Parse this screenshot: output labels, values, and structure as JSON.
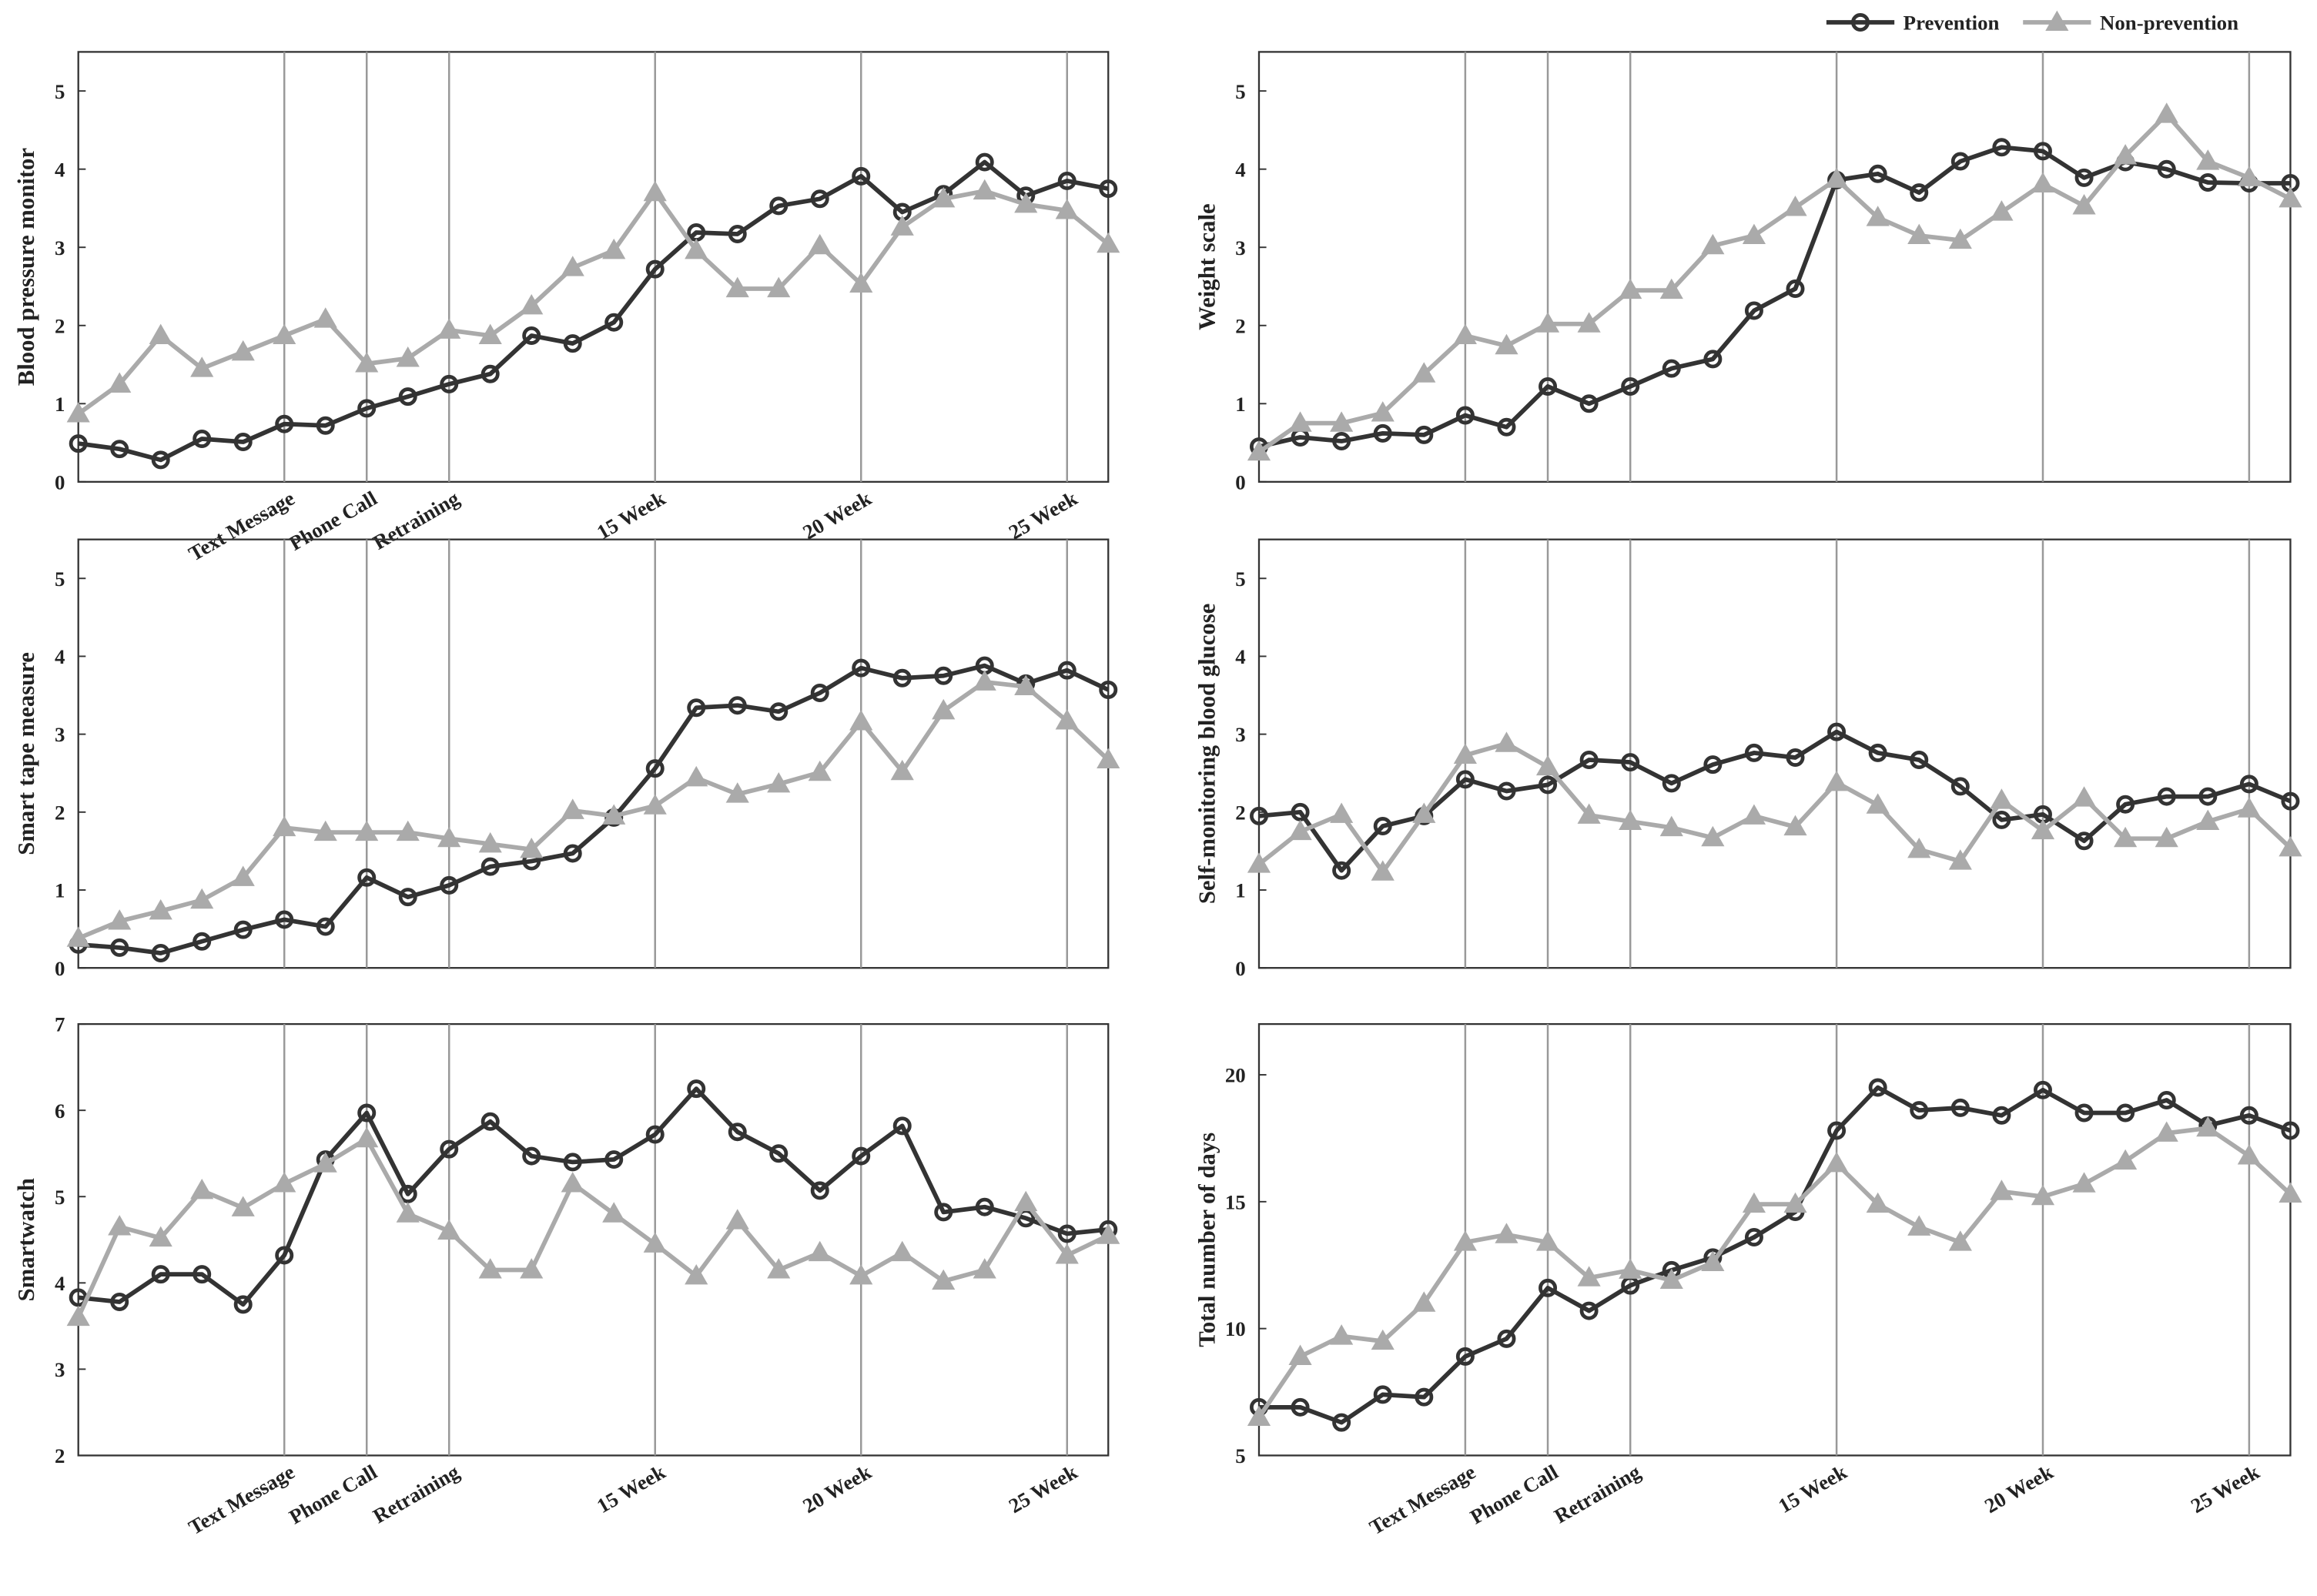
{
  "chart_data": [
    {
      "type": "line",
      "ylabel": "Blood pressure monitor",
      "x": [
        1,
        2,
        3,
        4,
        5,
        6,
        7,
        8,
        9,
        10,
        11,
        12,
        13,
        14,
        15,
        16,
        17,
        18,
        19,
        20,
        21,
        22,
        23,
        24,
        25,
        26
      ],
      "xlim": [
        1,
        26
      ],
      "ylim": [
        0,
        5.5
      ],
      "yticks": [
        0,
        1,
        2,
        3,
        4,
        5
      ],
      "xticks": [
        {
          "value": 6,
          "label": "Text Message"
        },
        {
          "value": 8,
          "label": "Phone Call"
        },
        {
          "value": 10,
          "label": "Retraining"
        },
        {
          "value": 15,
          "label": "15 Week"
        },
        {
          "value": 20,
          "label": "20 Week"
        },
        {
          "value": 25,
          "label": "25 Week"
        }
      ],
      "grid": true,
      "series": [
        {
          "name": "Prevention",
          "color": "#333333",
          "marker": "circle",
          "values": [
            0.49,
            0.42,
            0.28,
            0.55,
            0.51,
            0.74,
            0.72,
            0.94,
            1.09,
            1.25,
            1.38,
            1.87,
            1.77,
            2.04,
            2.72,
            3.19,
            3.17,
            3.53,
            3.62,
            3.91,
            3.45,
            3.68,
            4.09,
            3.66,
            3.85,
            3.75
          ]
        },
        {
          "name": "Non-prevention",
          "color": "#aaaaaa",
          "marker": "triangle",
          "values": [
            0.87,
            1.25,
            1.87,
            1.45,
            1.66,
            1.87,
            2.08,
            1.51,
            1.58,
            1.94,
            1.87,
            2.25,
            2.74,
            2.96,
            3.7,
            2.96,
            2.47,
            2.47,
            3.02,
            2.53,
            3.26,
            3.62,
            3.72,
            3.55,
            3.47,
            3.04
          ]
        }
      ]
    },
    {
      "type": "line",
      "ylabel": "Weight scale",
      "x": [
        1,
        2,
        3,
        4,
        5,
        6,
        7,
        8,
        9,
        10,
        11,
        12,
        13,
        14,
        15,
        16,
        17,
        18,
        19,
        20,
        21,
        22,
        23,
        24,
        25,
        26
      ],
      "xlim": [
        1,
        26
      ],
      "ylim": [
        0,
        5.5
      ],
      "yticks": [
        0,
        1,
        2,
        3,
        4,
        5
      ],
      "xticks": [
        {
          "value": 6
        },
        {
          "value": 8
        },
        {
          "value": 10
        },
        {
          "value": 15
        },
        {
          "value": 20
        },
        {
          "value": 25
        }
      ],
      "grid": true,
      "series": [
        {
          "color": "#333333",
          "marker": "circle",
          "values": [
            0.45,
            0.57,
            0.52,
            0.62,
            0.6,
            0.85,
            0.7,
            1.22,
            1.0,
            1.22,
            1.45,
            1.57,
            2.19,
            2.47,
            3.86,
            3.94,
            3.7,
            4.1,
            4.28,
            4.23,
            3.89,
            4.09,
            4.0,
            3.83,
            3.82,
            3.82
          ]
        },
        {
          "color": "#aaaaaa",
          "marker": "triangle",
          "values": [
            0.38,
            0.75,
            0.75,
            0.88,
            1.38,
            1.87,
            1.74,
            2.02,
            2.02,
            2.45,
            2.45,
            3.02,
            3.15,
            3.51,
            3.87,
            3.38,
            3.15,
            3.09,
            3.45,
            3.81,
            3.53,
            4.17,
            4.7,
            4.1,
            3.89,
            3.62
          ]
        }
      ]
    },
    {
      "type": "line",
      "ylabel": "Smart tape measure",
      "x": [
        1,
        2,
        3,
        4,
        5,
        6,
        7,
        8,
        9,
        10,
        11,
        12,
        13,
        14,
        15,
        16,
        17,
        18,
        19,
        20,
        21,
        22,
        23,
        24,
        25,
        26
      ],
      "xlim": [
        1,
        26
      ],
      "ylim": [
        0,
        5.5
      ],
      "yticks": [
        0,
        1,
        2,
        3,
        4,
        5
      ],
      "xticks": [
        {
          "value": 6
        },
        {
          "value": 8
        },
        {
          "value": 10
        },
        {
          "value": 15
        },
        {
          "value": 20
        },
        {
          "value": 25
        }
      ],
      "grid": true,
      "series": [
        {
          "color": "#333333",
          "marker": "circle",
          "values": [
            0.3,
            0.26,
            0.19,
            0.34,
            0.49,
            0.62,
            0.53,
            1.16,
            0.91,
            1.06,
            1.3,
            1.37,
            1.47,
            1.93,
            2.56,
            3.34,
            3.37,
            3.29,
            3.53,
            3.85,
            3.72,
            3.75,
            3.88,
            3.65,
            3.82,
            3.57
          ]
        },
        {
          "color": "#aaaaaa",
          "marker": "triangle",
          "values": [
            0.38,
            0.6,
            0.73,
            0.87,
            1.16,
            1.8,
            1.74,
            1.74,
            1.74,
            1.66,
            1.59,
            1.52,
            2.02,
            1.95,
            2.08,
            2.44,
            2.23,
            2.36,
            2.51,
            3.16,
            2.52,
            3.3,
            3.67,
            3.61,
            3.17,
            2.67
          ]
        }
      ]
    },
    {
      "type": "line",
      "ylabel": "Self-monitoring blood glucose",
      "x": [
        1,
        2,
        3,
        4,
        5,
        6,
        7,
        8,
        9,
        10,
        11,
        12,
        13,
        14,
        15,
        16,
        17,
        18,
        19,
        20,
        21,
        22,
        23,
        24,
        25,
        26
      ],
      "xlim": [
        1,
        26
      ],
      "ylim": [
        0,
        5.5
      ],
      "yticks": [
        0,
        1,
        2,
        3,
        4,
        5
      ],
      "xticks": [
        {
          "value": 6
        },
        {
          "value": 8
        },
        {
          "value": 10
        },
        {
          "value": 15
        },
        {
          "value": 20
        },
        {
          "value": 25
        }
      ],
      "grid": true,
      "series": [
        {
          "color": "#333333",
          "marker": "circle",
          "values": [
            1.95,
            2.0,
            1.25,
            1.82,
            1.95,
            2.42,
            2.27,
            2.35,
            2.67,
            2.64,
            2.37,
            2.61,
            2.76,
            2.7,
            3.03,
            2.76,
            2.67,
            2.33,
            1.9,
            1.97,
            1.63,
            2.1,
            2.2,
            2.2,
            2.36,
            2.14
          ]
        },
        {
          "color": "#aaaaaa",
          "marker": "triangle",
          "values": [
            1.33,
            1.75,
            1.97,
            1.23,
            1.97,
            2.73,
            2.88,
            2.58,
            1.96,
            1.88,
            1.8,
            1.67,
            1.95,
            1.81,
            2.38,
            2.09,
            1.52,
            1.37,
            2.15,
            1.76,
            2.18,
            1.66,
            1.66,
            1.88,
            2.04,
            1.54
          ]
        }
      ]
    },
    {
      "type": "line",
      "ylabel": "Smartwatch",
      "x": [
        1,
        2,
        3,
        4,
        5,
        6,
        7,
        8,
        9,
        10,
        11,
        12,
        13,
        14,
        15,
        16,
        17,
        18,
        19,
        20,
        21,
        22,
        23,
        24,
        25,
        26
      ],
      "xlim": [
        1,
        26
      ],
      "ylim": [
        2,
        7
      ],
      "yticks": [
        2,
        3,
        4,
        5,
        6,
        7
      ],
      "xticks": [
        {
          "value": 6,
          "label": "Text Message"
        },
        {
          "value": 8,
          "label": "Phone Call"
        },
        {
          "value": 10,
          "label": "Retraining"
        },
        {
          "value": 15,
          "label": "15 Week"
        },
        {
          "value": 20,
          "label": "20 Week"
        },
        {
          "value": 25,
          "label": "25 Week"
        }
      ],
      "grid": true,
      "series": [
        {
          "color": "#333333",
          "marker": "circle",
          "values": [
            3.83,
            3.78,
            4.1,
            4.1,
            3.75,
            4.32,
            5.43,
            5.97,
            5.03,
            5.55,
            5.87,
            5.47,
            5.4,
            5.43,
            5.72,
            6.25,
            5.75,
            5.5,
            5.07,
            5.47,
            5.82,
            4.82,
            4.88,
            4.75,
            4.57,
            4.62
          ]
        },
        {
          "color": "#aaaaaa",
          "marker": "triangle",
          "values": [
            3.6,
            4.65,
            4.52,
            5.07,
            4.87,
            5.15,
            5.38,
            5.67,
            4.8,
            4.6,
            4.15,
            4.15,
            5.15,
            4.8,
            4.45,
            4.08,
            4.72,
            4.15,
            4.35,
            4.08,
            4.35,
            4.02,
            4.15,
            4.93,
            4.32,
            4.55
          ]
        }
      ]
    },
    {
      "type": "line",
      "ylabel": "Total number of days",
      "x": [
        1,
        2,
        3,
        4,
        5,
        6,
        7,
        8,
        9,
        10,
        11,
        12,
        13,
        14,
        15,
        16,
        17,
        18,
        19,
        20,
        21,
        22,
        23,
        24,
        25,
        26
      ],
      "xlim": [
        1,
        26
      ],
      "ylim": [
        5,
        22
      ],
      "yticks": [
        5,
        10,
        15,
        20
      ],
      "xticks": [
        {
          "value": 6,
          "label": "Text Message"
        },
        {
          "value": 8,
          "label": "Phone Call"
        },
        {
          "value": 10,
          "label": "Retraining"
        },
        {
          "value": 15,
          "label": "15 Week"
        },
        {
          "value": 20,
          "label": "20 Week"
        },
        {
          "value": 25,
          "label": "25 Week"
        }
      ],
      "grid": true,
      "series": [
        {
          "color": "#333333",
          "marker": "circle",
          "values": [
            6.9,
            6.9,
            6.3,
            7.4,
            7.3,
            8.9,
            9.6,
            11.6,
            10.7,
            11.7,
            12.3,
            12.8,
            13.6,
            14.6,
            17.8,
            19.5,
            18.6,
            18.7,
            18.4,
            19.4,
            18.5,
            18.5,
            19.0,
            18.0,
            18.4,
            17.8
          ]
        },
        {
          "color": "#aaaaaa",
          "marker": "triangle",
          "values": [
            6.5,
            8.9,
            9.7,
            9.5,
            11.0,
            13.4,
            13.7,
            13.4,
            12.0,
            12.3,
            11.9,
            12.6,
            14.9,
            14.9,
            16.5,
            14.9,
            14.0,
            13.4,
            15.4,
            15.2,
            15.7,
            16.6,
            17.7,
            17.9,
            16.8,
            15.3
          ]
        }
      ]
    }
  ]
}
